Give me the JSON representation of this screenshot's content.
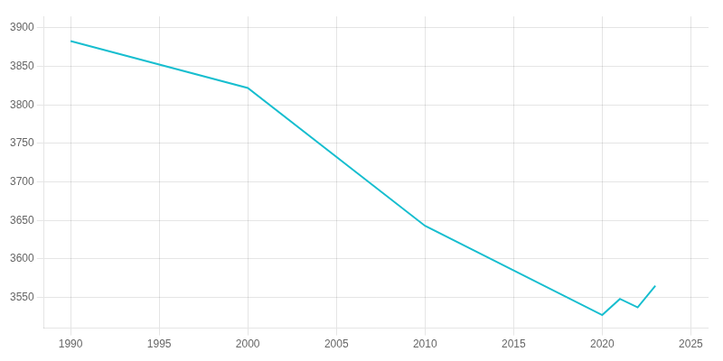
{
  "chart_data": {
    "type": "line",
    "x": [
      1990,
      2000,
      2010,
      2020,
      2021,
      2022,
      2023
    ],
    "values": [
      3883,
      3822,
      3643,
      3527,
      3548,
      3537,
      3565
    ],
    "color": "#17BECF",
    "xlim": [
      1988.5,
      2026
    ],
    "ylim": [
      3510,
      3915
    ],
    "xticks": [
      1990,
      1995,
      2000,
      2005,
      2010,
      2015,
      2020,
      2025
    ],
    "yticks": [
      3550,
      3600,
      3650,
      3700,
      3750,
      3800,
      3850,
      3900
    ],
    "grid": true
  }
}
